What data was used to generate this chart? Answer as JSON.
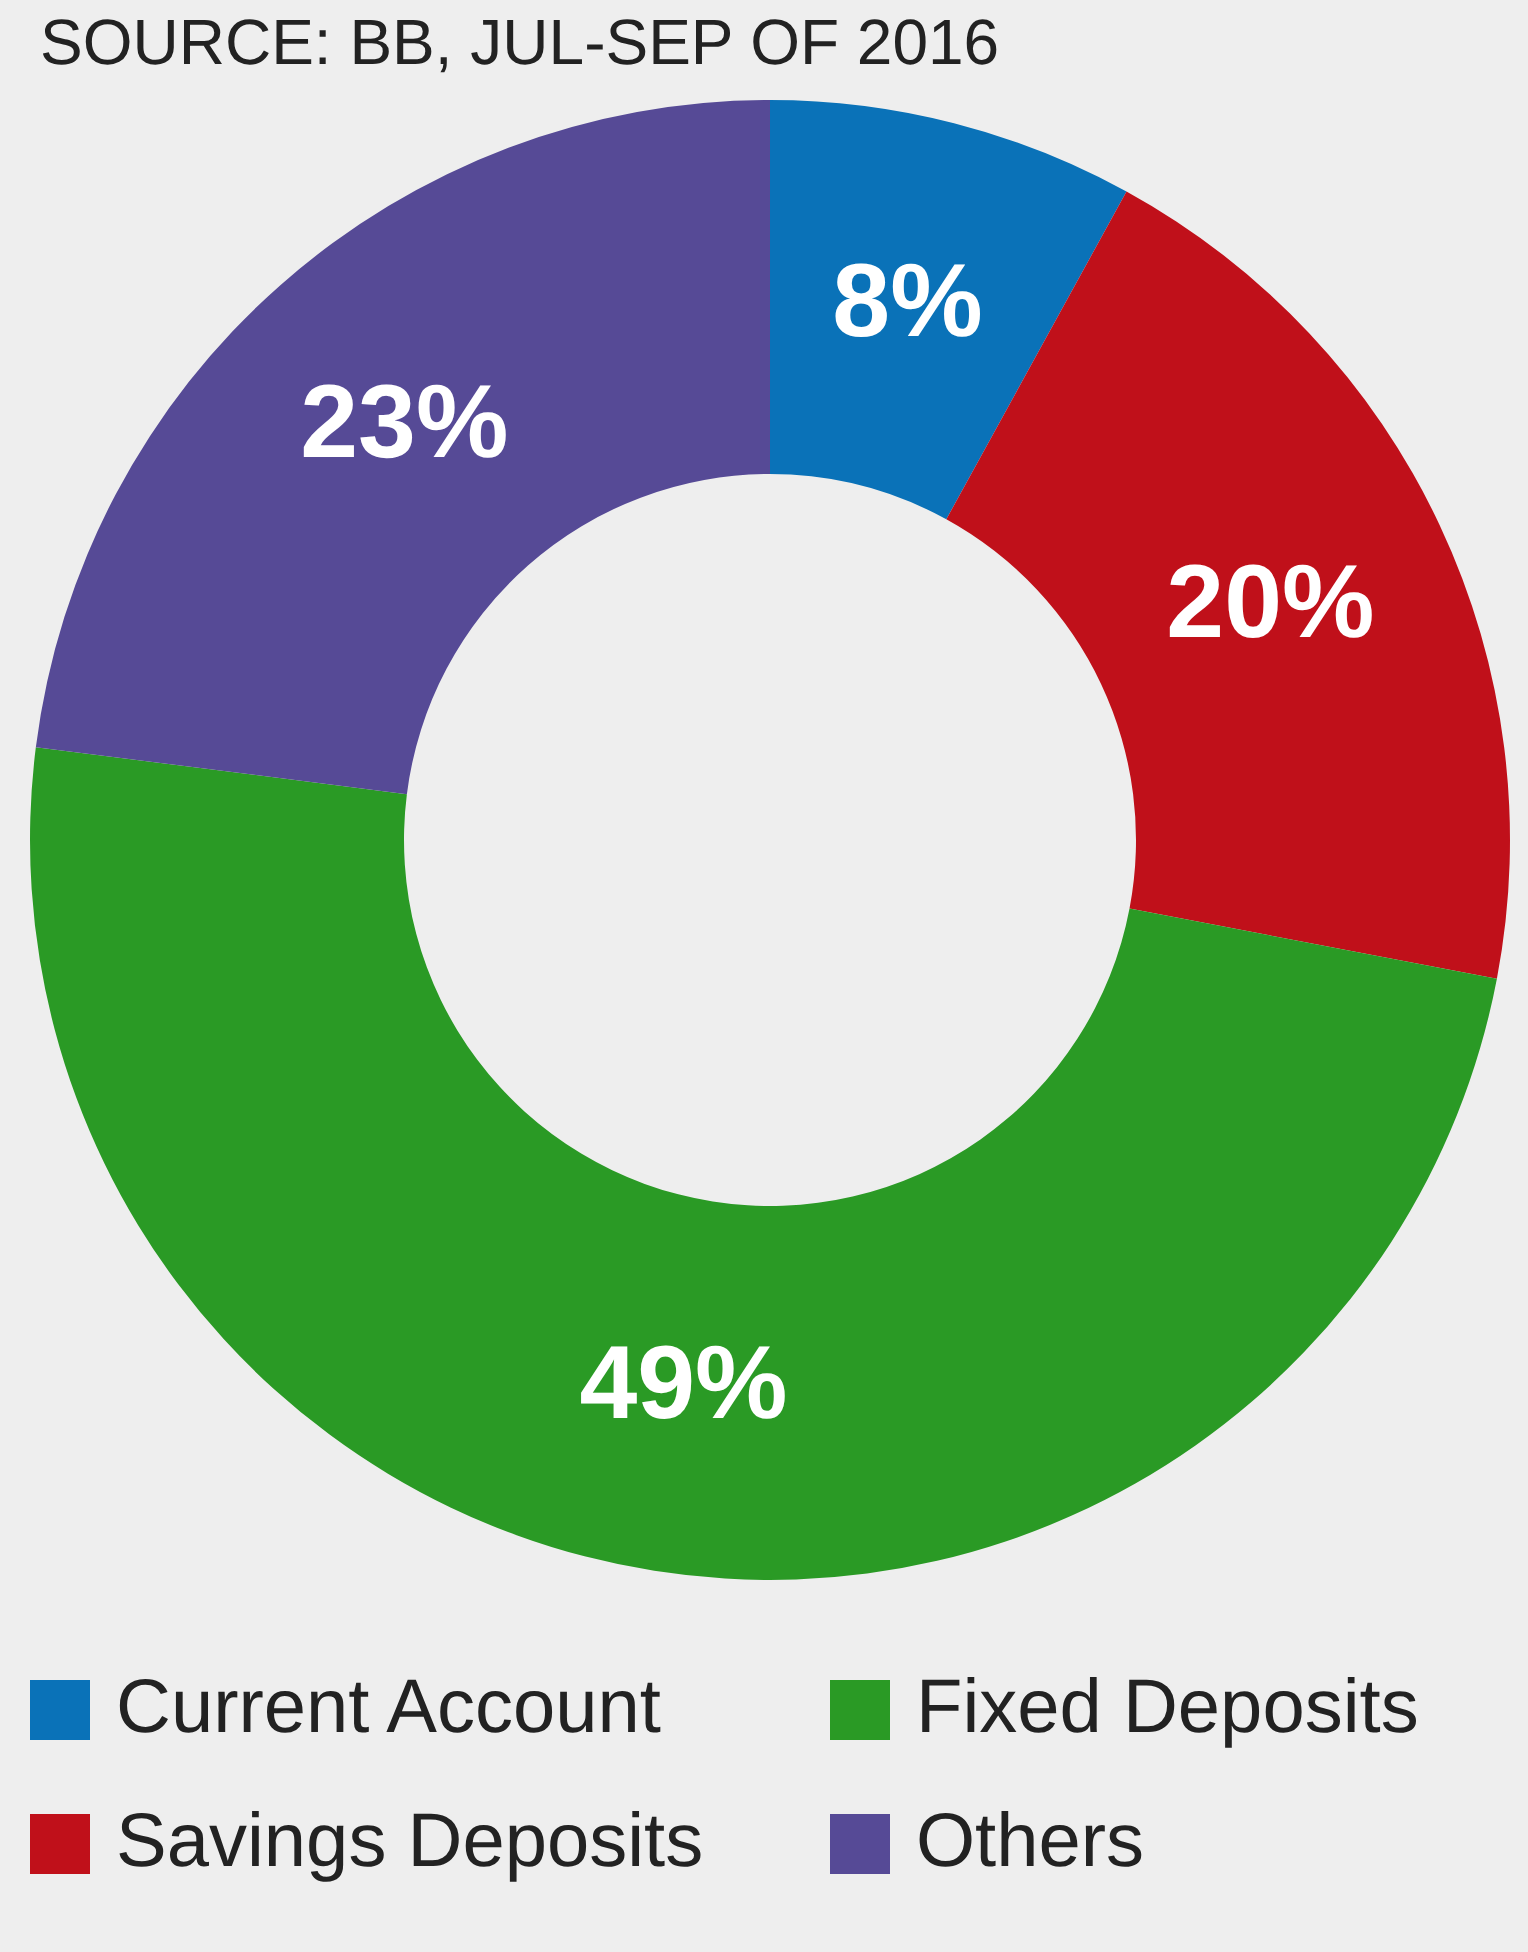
{
  "chart_data": {
    "type": "donut",
    "categories": [
      "Current Account",
      "Savings Deposits",
      "Fixed Deposits",
      "Others"
    ],
    "values": [
      8,
      20,
      49,
      23
    ],
    "colors": [
      "#0a72b8",
      "#c0101a",
      "#2a9a25",
      "#564a96"
    ],
    "value_labels": [
      "8%",
      "20%",
      "49%",
      "23%"
    ],
    "legend": "bottom",
    "annotations": [
      "SOURCE: BB, JUL-SEP OF 2016"
    ]
  }
}
